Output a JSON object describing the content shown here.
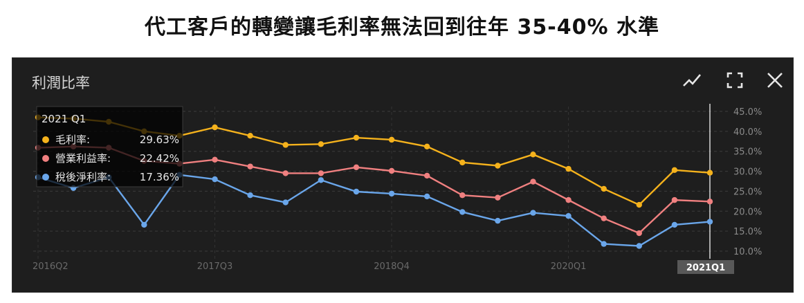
{
  "headline": "代工客戶的轉變讓毛利率無法回到往年 35-40% 水準",
  "panel": {
    "title": "利潤比率",
    "tools": [
      {
        "name": "line-chart-icon",
        "glyph": "⟋"
      },
      {
        "name": "fullscreen-icon",
        "glyph": "⛶"
      },
      {
        "name": "close-icon",
        "glyph": "✕"
      }
    ]
  },
  "tooltip": {
    "period": "2021 Q1",
    "rows": [
      {
        "label": "毛利率:",
        "value": "29.63%"
      },
      {
        "label": "營業利益率:",
        "value": "22.42%"
      },
      {
        "label": "稅後淨利率:",
        "value": "17.36%"
      }
    ]
  },
  "chart_data": {
    "type": "line",
    "x": [
      "2016Q2",
      "2016Q3",
      "2016Q4",
      "2017Q1",
      "2017Q2",
      "2017Q3",
      "2017Q4",
      "2018Q1",
      "2018Q2",
      "2018Q3",
      "2018Q4",
      "2019Q1",
      "2019Q2",
      "2019Q3",
      "2019Q4",
      "2020Q1",
      "2020Q2",
      "2020Q3",
      "2020Q4",
      "2021Q1"
    ],
    "x_tick_labels": [
      "2016Q2",
      "2017Q3",
      "2018Q4",
      "2020Q1"
    ],
    "highlight_x_label": "2021Q1",
    "ylim": [
      10,
      45
    ],
    "y_ticks": [
      "10.0%",
      "15.0%",
      "20.0%",
      "25.0%",
      "30.0%",
      "35.0%",
      "40.0%",
      "45.0%"
    ],
    "grid": true,
    "legend": "tooltip top-left",
    "series": [
      {
        "name": "毛利率",
        "color": "#f5b21c",
        "values": [
          43.5,
          43.2,
          42.4,
          40.0,
          38.9,
          41.0,
          38.9,
          36.6,
          36.8,
          38.4,
          37.9,
          36.2,
          32.2,
          31.4,
          34.2,
          30.6,
          25.6,
          21.6,
          30.3,
          29.63
        ]
      },
      {
        "name": "營業利益率",
        "color": "#f08080",
        "values": [
          35.9,
          36.2,
          35.9,
          32.6,
          31.9,
          32.9,
          31.2,
          29.5,
          29.5,
          31.0,
          30.1,
          28.9,
          24.0,
          23.4,
          27.4,
          22.8,
          18.2,
          14.5,
          22.8,
          22.42
        ]
      },
      {
        "name": "稅後淨利率",
        "color": "#6aa6ea",
        "values": [
          28.5,
          25.8,
          28.5,
          16.6,
          29.1,
          28.0,
          24.0,
          22.2,
          27.8,
          24.9,
          24.4,
          23.7,
          19.8,
          17.6,
          19.6,
          18.8,
          11.8,
          11.3,
          16.6,
          17.36
        ]
      }
    ]
  }
}
